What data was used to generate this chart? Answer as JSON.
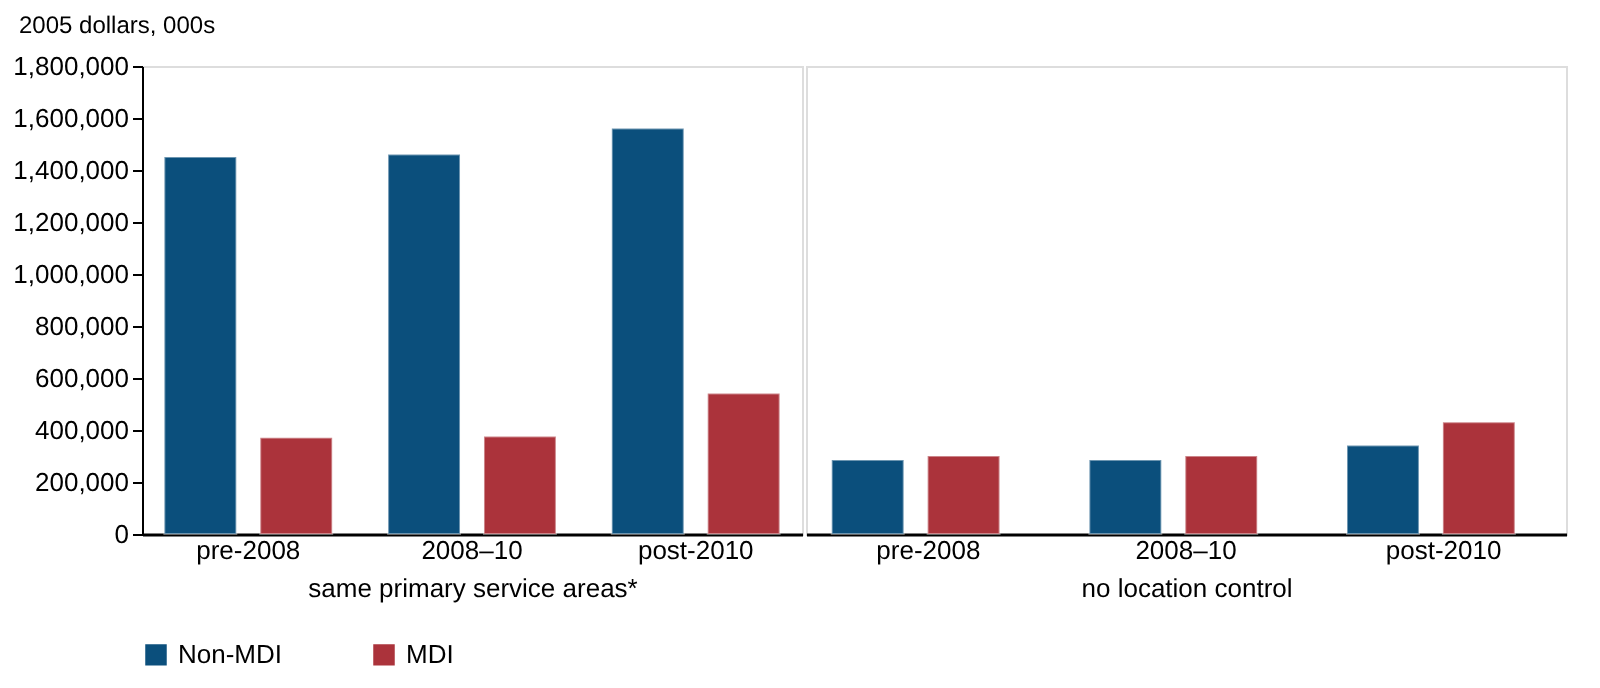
{
  "chart_data": [
    {
      "type": "bar",
      "ylabel": "2005 dollars, 000s",
      "xlabel": "same primary service areas*",
      "categories": [
        "pre-2008",
        "2008–10",
        "post-2010"
      ],
      "series": [
        {
          "name": "Non-MDI",
          "color": "#0b4f7c",
          "values": [
            1450000,
            1460000,
            1560000
          ]
        },
        {
          "name": "MDI",
          "color": "#ab333b",
          "values": [
            370000,
            375000,
            540000
          ]
        }
      ],
      "ylim": [
        0,
        1800000
      ],
      "yticks": [
        0,
        {
          "value": 200000,
          "label": "200,000"
        },
        {
          "value": 400000,
          "label": "400,000"
        },
        {
          "value": 600000,
          "label": "600,000"
        },
        {
          "value": 800000,
          "label": "800,000"
        },
        {
          "value": 1000000,
          "label": "1,000,000"
        },
        {
          "value": 1200000,
          "label": "1,200,000"
        },
        {
          "value": 1400000,
          "label": "1,400,000"
        },
        {
          "value": 1600000,
          "label": "1,600,000"
        },
        {
          "value": 1800000,
          "label": "1,800,000"
        }
      ],
      "grid": false,
      "legend": "bottom"
    },
    {
      "type": "bar",
      "xlabel": "no location control",
      "categories": [
        "pre-2008",
        "2008–10",
        "post-2010"
      ],
      "series": [
        {
          "name": "Non-MDI",
          "color": "#0b4f7c",
          "values": [
            285000,
            285000,
            340000
          ]
        },
        {
          "name": "MDI",
          "color": "#ab333b",
          "values": [
            300000,
            300000,
            430000
          ]
        }
      ],
      "ylim": [
        0,
        1800000
      ],
      "yticks": [
        0,
        200000,
        400000,
        600000,
        800000,
        1000000,
        1200000,
        1400000,
        1600000,
        1800000
      ],
      "grid": false,
      "tick_labels": "x"
    }
  ]
}
